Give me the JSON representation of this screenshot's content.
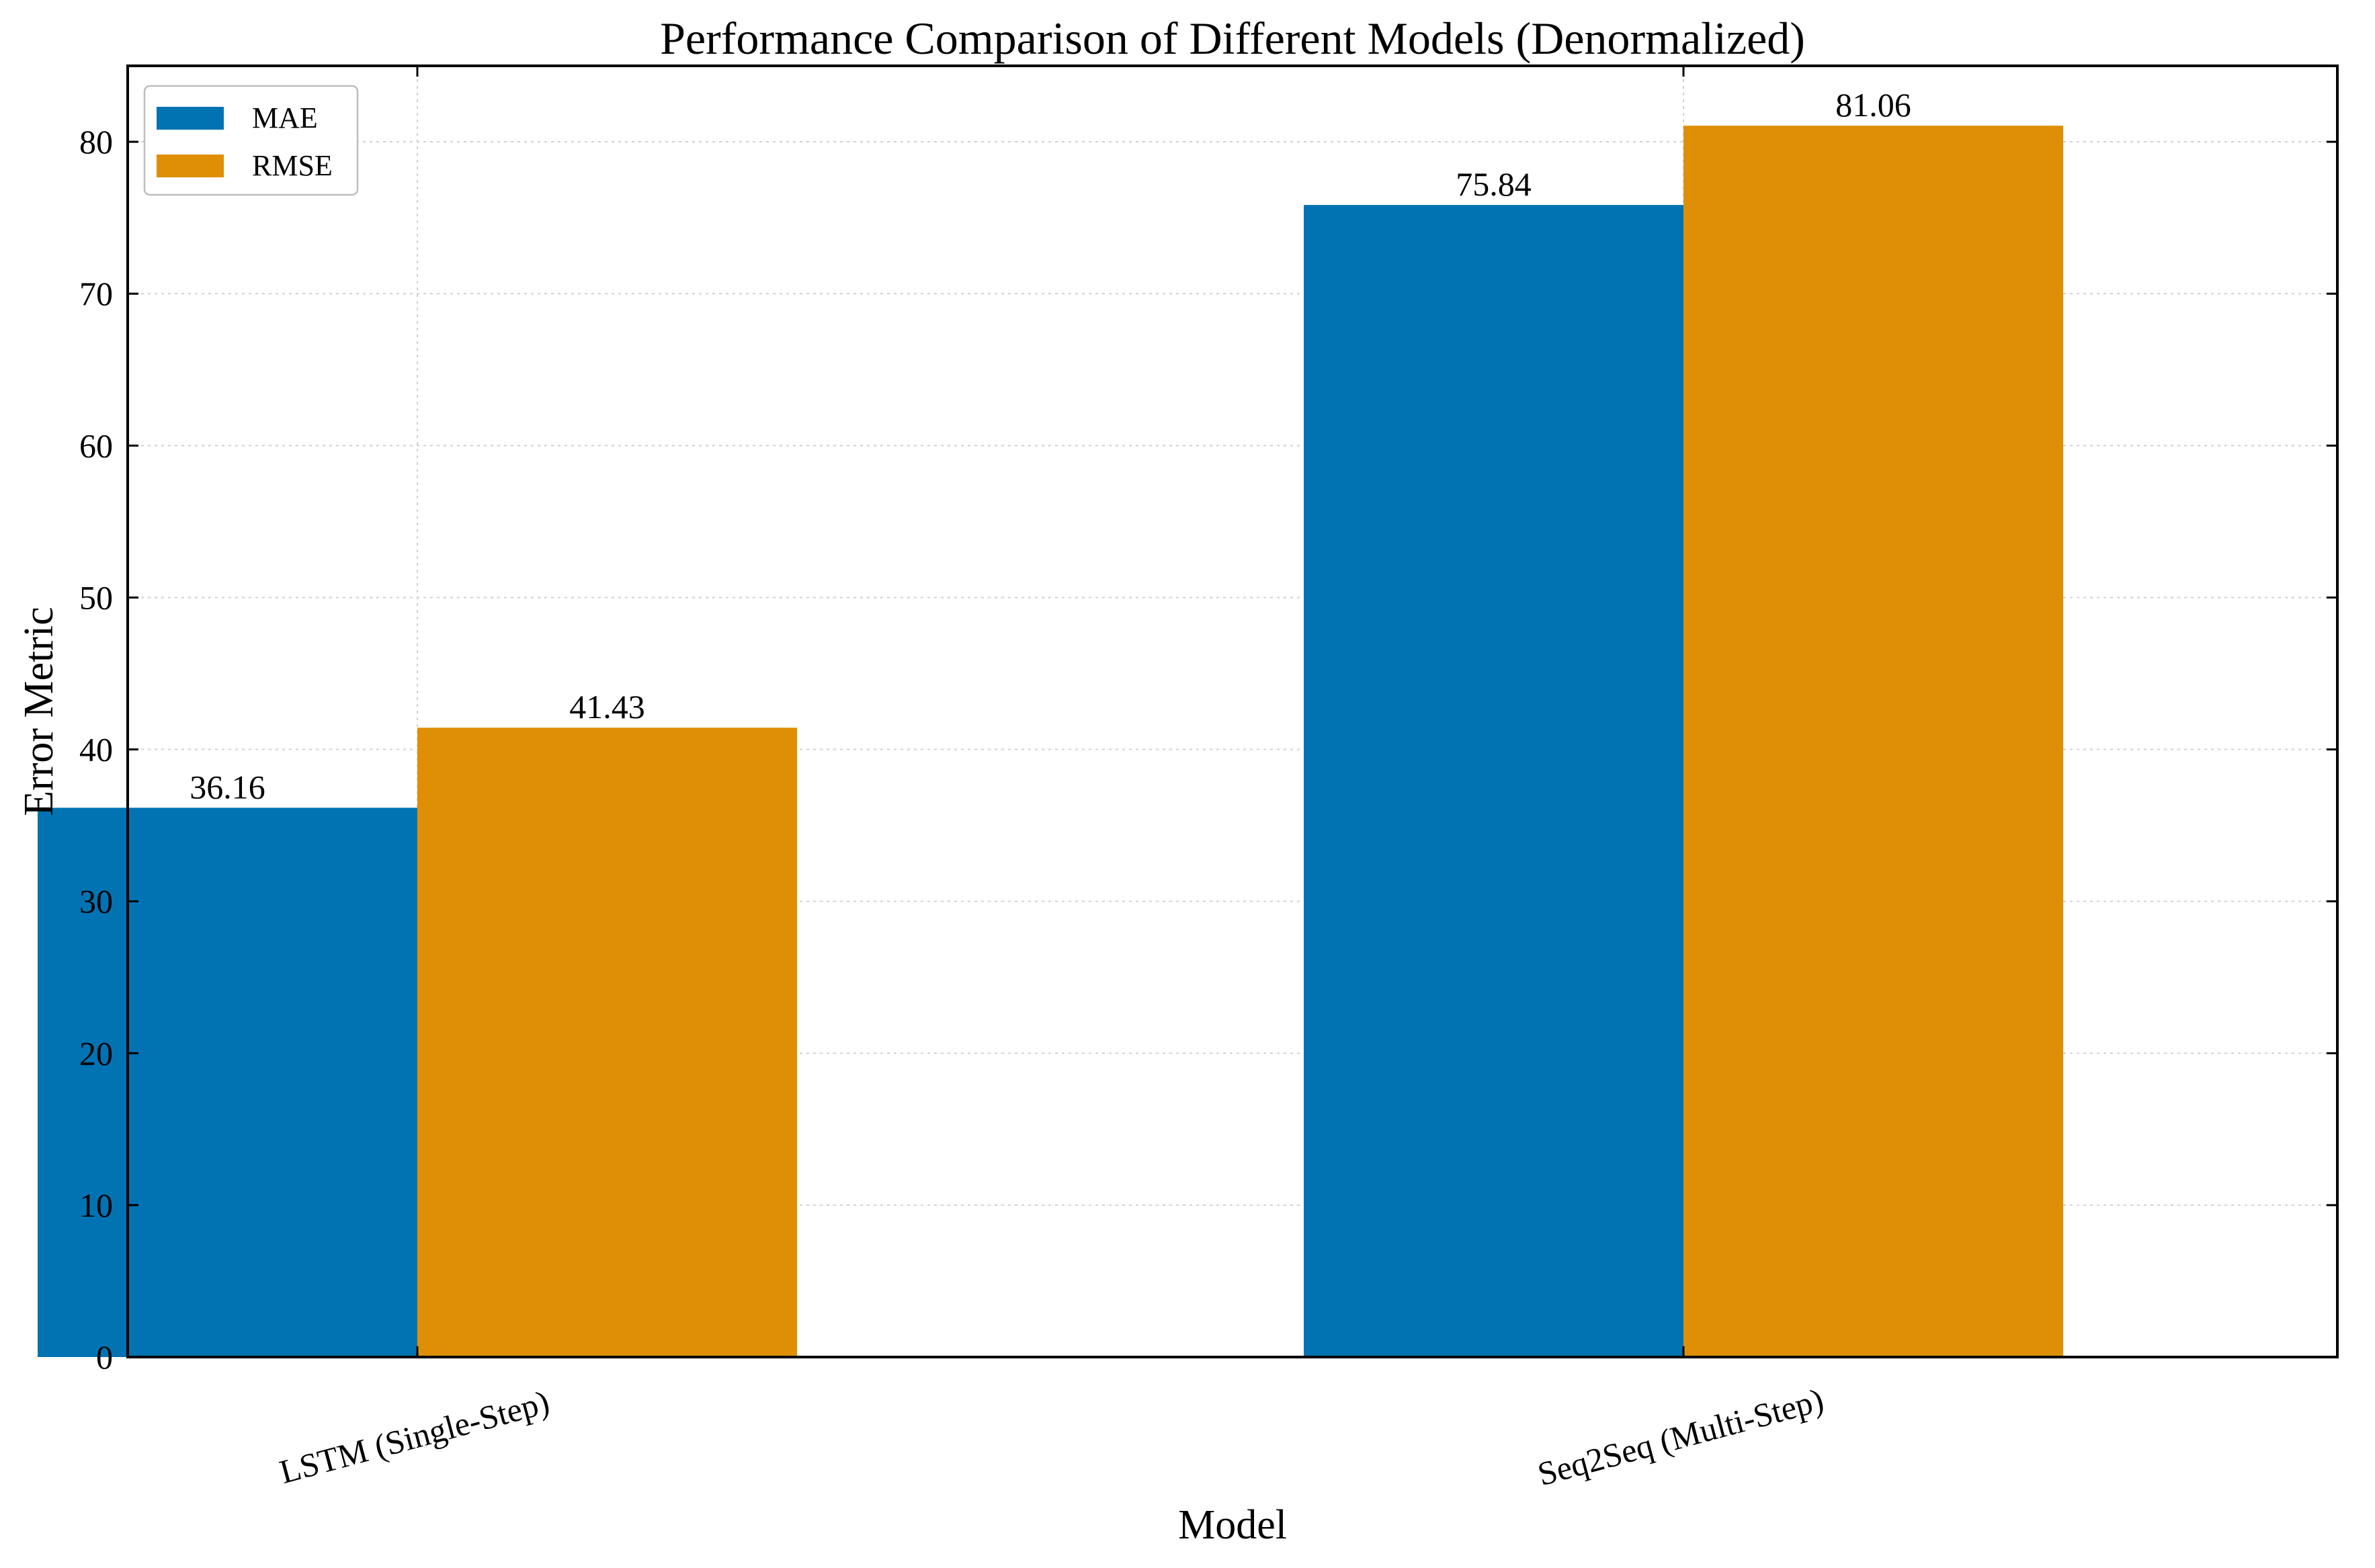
{
  "chart_data": {
    "type": "bar",
    "title": "Performance Comparison of Different Models (Denormalized)",
    "xlabel": "Model",
    "ylabel": "Error Metric",
    "categories": [
      "LSTM (Single-Step)",
      "Seq2Seq (Multi-Step)"
    ],
    "series": [
      {
        "name": "MAE",
        "color": "#0173b2",
        "values": [
          36.16,
          75.84
        ],
        "labels": [
          "36.16",
          "75.84"
        ]
      },
      {
        "name": "RMSE",
        "color": "#de8f05",
        "values": [
          41.43,
          81.06
        ],
        "labels": [
          "41.43",
          "81.06"
        ]
      }
    ],
    "ylim": [
      0,
      85
    ],
    "yticks": [
      0,
      10,
      20,
      30,
      40,
      50,
      60,
      70,
      80
    ],
    "grid": true,
    "legend": "top-left"
  }
}
